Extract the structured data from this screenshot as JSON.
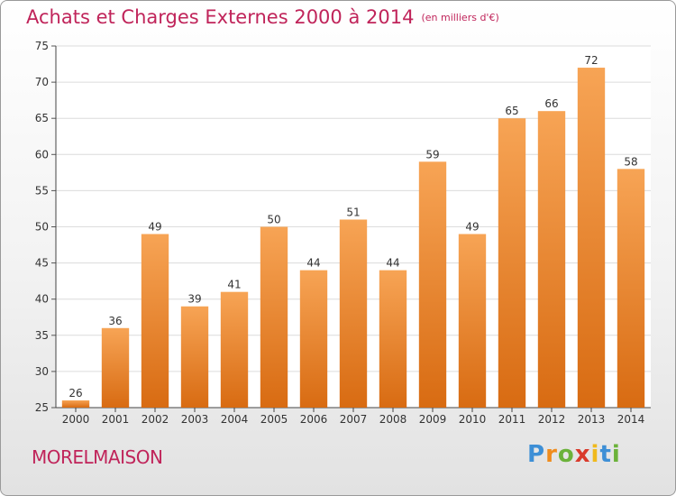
{
  "title": "Achats et Charges Externes 2000 à 2014",
  "subtitle": "(en milliers d'€)",
  "commune": "MORELMAISON",
  "brand": {
    "p": "P",
    "r": "r",
    "o": "o",
    "x": "x",
    "i1": "i",
    "t": "t",
    "i2": "i"
  },
  "colors": {
    "accent": "#c0245a",
    "bar_top": "#f7a455",
    "bar_bottom": "#d86b12"
  },
  "chart_data": {
    "type": "bar",
    "categories": [
      "2000",
      "2001",
      "2002",
      "2003",
      "2004",
      "2005",
      "2006",
      "2007",
      "2008",
      "2009",
      "2010",
      "2011",
      "2012",
      "2013",
      "2014"
    ],
    "values": [
      26,
      36,
      49,
      39,
      41,
      50,
      44,
      51,
      44,
      59,
      49,
      65,
      66,
      72,
      58
    ],
    "title": "Achats et Charges Externes 2000 à 2014",
    "ylim": [
      25,
      75
    ],
    "yticks": [
      25,
      30,
      35,
      40,
      45,
      50,
      55,
      60,
      65,
      70,
      75
    ],
    "grid": true
  }
}
